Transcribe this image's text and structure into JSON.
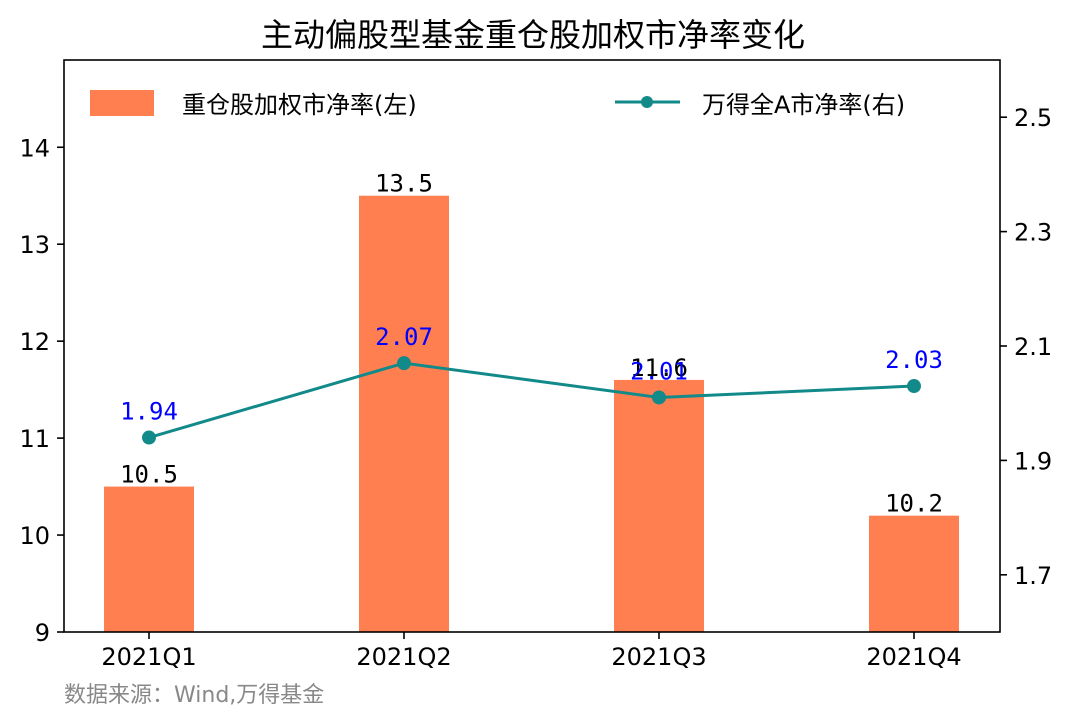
{
  "chart_data": {
    "type": "bar",
    "title": "主动偏股型基金重仓股加权市净率变化",
    "categories": [
      "2021Q1",
      "2021Q2",
      "2021Q3",
      "2021Q4"
    ],
    "series": [
      {
        "name": "重仓股加权市净率(左)",
        "type": "bar",
        "axis": "left",
        "values": [
          10.5,
          13.5,
          11.6,
          10.2
        ],
        "labels": [
          "10.5",
          "13.5",
          "11.6",
          "10.2"
        ],
        "color": "#FF7F50"
      },
      {
        "name": "万得全A市净率(右)",
        "type": "line",
        "axis": "right",
        "values": [
          1.94,
          2.07,
          2.01,
          2.03
        ],
        "labels": [
          "1.94",
          "2.07",
          "2.01",
          "2.03"
        ],
        "color": "#138A8A",
        "label_color": "#0000FF"
      }
    ],
    "y_left": {
      "ylim": [
        9,
        14.9
      ],
      "ticks": [
        "9",
        "10",
        "11",
        "12",
        "13",
        "14"
      ]
    },
    "y_right": {
      "ylim": [
        1.6,
        2.6
      ],
      "ticks": [
        "1.7",
        "1.9",
        "2.1",
        "2.3",
        "2.5"
      ]
    },
    "legend": "top",
    "grid": false
  },
  "source_note": "数据来源：Wind,万得基金"
}
